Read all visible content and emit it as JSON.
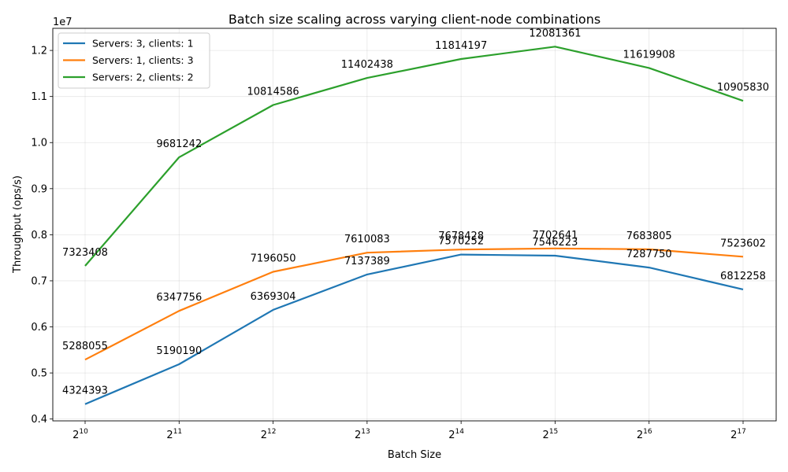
{
  "chart_data": {
    "type": "line",
    "title": "Batch size scaling across varying client-node combinations",
    "xlabel": "Batch Size",
    "ylabel": "Throughput (ops/s)",
    "y_offset_label": "1e7",
    "x_scale": "log2",
    "x": [
      1024,
      2048,
      4096,
      8192,
      16384,
      32768,
      65536,
      131072
    ],
    "x_tick_labels": [
      {
        "base": "2",
        "exp": "10"
      },
      {
        "base": "2",
        "exp": "11"
      },
      {
        "base": "2",
        "exp": "12"
      },
      {
        "base": "2",
        "exp": "13"
      },
      {
        "base": "2",
        "exp": "14"
      },
      {
        "base": "2",
        "exp": "15"
      },
      {
        "base": "2",
        "exp": "16"
      },
      {
        "base": "2",
        "exp": "17"
      }
    ],
    "ylim": [
      3960000,
      12480000
    ],
    "y_ticks": [
      4000000,
      5000000,
      6000000,
      7000000,
      8000000,
      9000000,
      10000000,
      11000000,
      12000000
    ],
    "y_tick_labels": [
      "0.4",
      "0.5",
      "0.6",
      "0.7",
      "0.8",
      "0.9",
      "1.0",
      "1.1",
      "1.2"
    ],
    "grid": true,
    "legend_position": "top-left",
    "series": [
      {
        "name": "Servers: 3, clients: 1",
        "color": "#1f77b4",
        "values": [
          4324393,
          5190190,
          6369304,
          7137389,
          7570252,
          7546223,
          7287750,
          6812258
        ],
        "labels": [
          "4324393",
          "5190190",
          "6369304",
          "7137389",
          "7570252",
          "7546223",
          "7287750",
          "6812258"
        ]
      },
      {
        "name": "Servers: 1, clients: 3",
        "color": "#ff7f0e",
        "values": [
          5288055,
          6347756,
          7196050,
          7610083,
          7678428,
          7702641,
          7683805,
          7523602
        ],
        "labels": [
          "5288055",
          "6347756",
          "7196050",
          "7610083",
          "7678428",
          "7702641",
          "7683805",
          "7523602"
        ]
      },
      {
        "name": "Servers: 2, clients: 2",
        "color": "#2ca02c",
        "values": [
          7323408,
          9681242,
          10814586,
          11402438,
          11814197,
          12081361,
          11619908,
          10905830
        ],
        "labels": [
          "7323408",
          "9681242",
          "10814586",
          "11402438",
          "11814197",
          "12081361",
          "11619908",
          "10905830"
        ]
      }
    ]
  }
}
